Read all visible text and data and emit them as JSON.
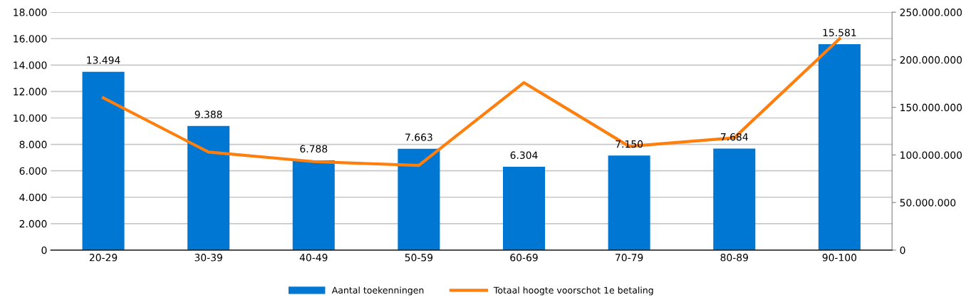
{
  "chart_data": {
    "type": "bar",
    "categories": [
      "20-29",
      "30-39",
      "40-49",
      "50-59",
      "60-69",
      "70-79",
      "80-89",
      "90-100"
    ],
    "series": [
      {
        "name": "Aantal toekenningen",
        "color": "#0077d2",
        "values": [
          13494,
          9388,
          6788,
          7663,
          6304,
          7150,
          7684,
          15581
        ],
        "value_labels": [
          "13.494",
          "9.388",
          "6.788",
          "7.663",
          "6.304",
          "7.150",
          "7.684",
          "15.581"
        ]
      },
      {
        "name": "Totaal hoogte voorschot 1e betaling",
        "type": "line",
        "axis": "y2",
        "color": "#ff7f0e",
        "values": [
          160000000,
          103000000,
          93000000,
          89000000,
          176000000,
          109000000,
          118000000,
          222000000
        ]
      }
    ],
    "ylim": [
      0,
      18000
    ],
    "yticks": [
      0,
      {
        "value": 2000,
        "label": "2.000"
      },
      {
        "value": 4000,
        "label": "4.000"
      },
      {
        "value": 6000,
        "label": "6.000"
      },
      {
        "value": 8000,
        "label": "8.000"
      },
      {
        "value": 10000,
        "label": "10.000"
      },
      {
        "value": 12000,
        "label": "12.000"
      },
      {
        "value": 14000,
        "label": "14.000"
      },
      {
        "value": 16000,
        "label": "16.000"
      },
      {
        "value": 18000,
        "label": "18.000"
      }
    ],
    "y2lim": [
      0,
      250000000
    ],
    "y2ticks": [
      0,
      {
        "value": 50000000,
        "label": "50.000.000"
      },
      {
        "value": 100000000,
        "label": "100.000.000"
      },
      {
        "value": 150000000,
        "label": "150.000.000"
      },
      {
        "value": 200000000,
        "label": "200.000.000"
      },
      {
        "value": 250000000,
        "label": "250.000.000"
      }
    ],
    "grid": "y",
    "legend": "bottom"
  }
}
